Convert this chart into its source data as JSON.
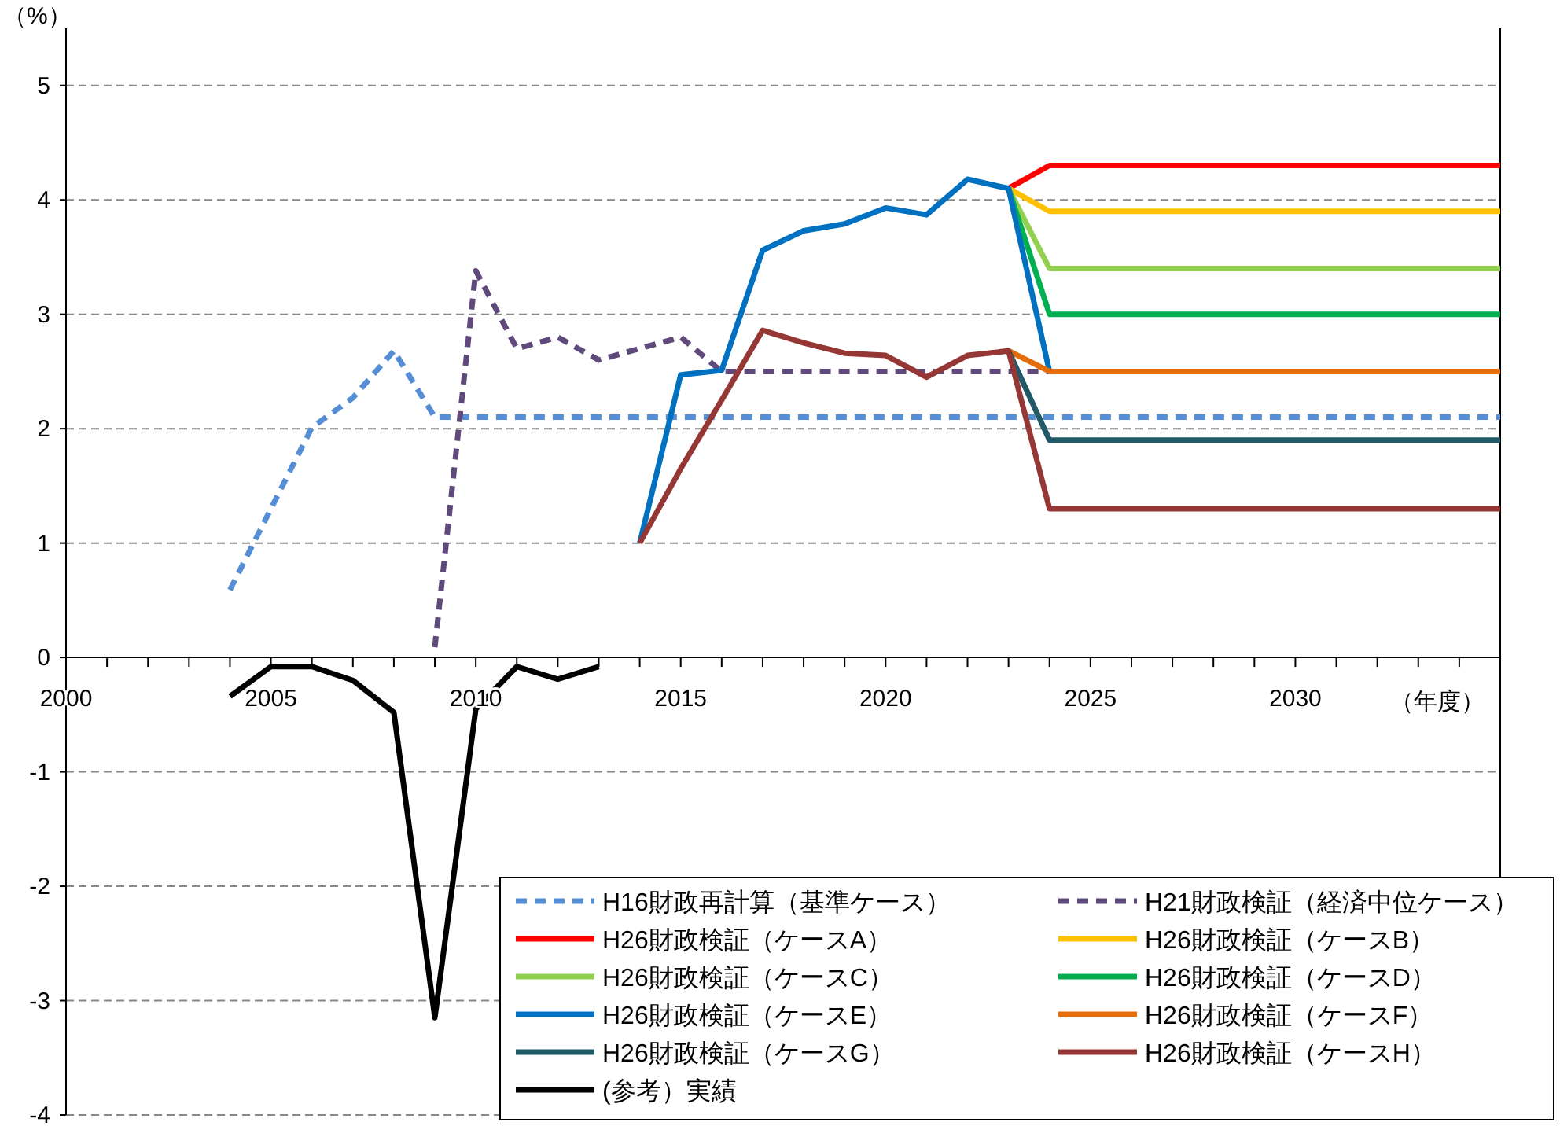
{
  "chart_data": {
    "type": "line",
    "ylabel": "（%）",
    "xlabel": "（年度）",
    "xlim": [
      2000,
      2035
    ],
    "ylim": [
      -4,
      5.5
    ],
    "xticks": [
      2000,
      {
        "value": 2001,
        "label": null
      },
      {
        "value": 2002,
        "label": null
      },
      {
        "value": 2003,
        "label": null
      },
      {
        "value": 2004,
        "label": null
      },
      2005,
      {
        "value": 2006,
        "label": null
      },
      {
        "value": 2007,
        "label": null
      },
      {
        "value": 2008,
        "label": null
      },
      {
        "value": 2009,
        "label": null
      },
      2010,
      {
        "value": 2011,
        "label": null
      },
      {
        "value": 2012,
        "label": null
      },
      {
        "value": 2013,
        "label": null
      },
      {
        "value": 2014,
        "label": null
      },
      2015,
      {
        "value": 2016,
        "label": null
      },
      {
        "value": 2017,
        "label": null
      },
      {
        "value": 2018,
        "label": null
      },
      {
        "value": 2019,
        "label": null
      },
      2020,
      {
        "value": 2021,
        "label": null
      },
      {
        "value": 2022,
        "label": null
      },
      {
        "value": 2023,
        "label": null
      },
      {
        "value": 2024,
        "label": null
      },
      2025,
      {
        "value": 2026,
        "label": null
      },
      {
        "value": 2027,
        "label": null
      },
      {
        "value": 2028,
        "label": null
      },
      {
        "value": 2029,
        "label": null
      },
      2030,
      {
        "value": 2031,
        "label": null
      },
      {
        "value": 2032,
        "label": null
      },
      {
        "value": 2033,
        "label": null
      },
      {
        "value": 2034,
        "label": null
      }
    ],
    "yticks": [
      -4,
      -3,
      -2,
      -1,
      0,
      1,
      2,
      3,
      4,
      5
    ],
    "grid": "y",
    "legend": "bottom right",
    "marker": "none",
    "series": [
      {
        "name": "H16財政再計算（基準ケース）",
        "color": "#558ed5",
        "line_style": "dashed",
        "x": [
          2004,
          2006,
          2007,
          2008,
          2009,
          2035
        ],
        "values": [
          0.59,
          2.01,
          2.27,
          2.68,
          2.1,
          2.1
        ]
      },
      {
        "name": "H21財政検証（経済中位ケース）",
        "color": "#604a7b",
        "line_style": "dashed",
        "x": [
          2009,
          2010,
          2011,
          2012,
          2013,
          2014,
          2015,
          2016,
          2024
        ],
        "values": [
          0.09,
          3.38,
          2.7,
          2.8,
          2.6,
          2.7,
          2.8,
          2.5,
          2.5
        ]
      },
      {
        "name": "H26財政検証（ケースA）",
        "color": "#ff0000",
        "line_style": "solid",
        "x": [
          2023,
          2024,
          2035
        ],
        "values": [
          4.1,
          4.3,
          4.3
        ]
      },
      {
        "name": "H26財政検証（ケースB）",
        "color": "#ffc000",
        "line_style": "solid",
        "x": [
          2023,
          2024,
          2035
        ],
        "values": [
          4.1,
          3.9,
          3.9
        ]
      },
      {
        "name": "H26財政検証（ケースC）",
        "color": "#92d050",
        "line_style": "solid",
        "x": [
          2023,
          2024,
          2035
        ],
        "values": [
          4.1,
          3.4,
          3.4
        ]
      },
      {
        "name": "H26財政検証（ケースD）",
        "color": "#00b050",
        "line_style": "solid",
        "x": [
          2023,
          2024,
          2035
        ],
        "values": [
          4.1,
          3.0,
          3.0
        ]
      },
      {
        "name": "H26財政検証（ケースE）",
        "color": "#0070c0",
        "line_style": "solid",
        "x": [
          2014,
          2015,
          2016,
          2017,
          2018,
          2019,
          2020,
          2021,
          2022,
          2023,
          2024
        ],
        "values": [
          1.0,
          2.47,
          2.51,
          3.56,
          3.73,
          3.79,
          3.93,
          3.87,
          4.18,
          4.1,
          2.5
        ]
      },
      {
        "name": "H26財政検証（ケースF）",
        "color": "#e46c0a",
        "line_style": "solid",
        "x": [
          2023,
          2024,
          2035
        ],
        "values": [
          2.68,
          2.5,
          2.5
        ]
      },
      {
        "name": "H26財政検証（ケースG）",
        "color": "#215967",
        "line_style": "solid",
        "x": [
          2023,
          2024,
          2035
        ],
        "values": [
          2.68,
          1.9,
          1.9
        ]
      },
      {
        "name": "H26財政検証（ケースH）",
        "color": "#953735",
        "line_style": "solid",
        "x": [
          2014,
          2015,
          2016,
          2017,
          2018,
          2019,
          2020,
          2021,
          2022,
          2023,
          2024,
          2035
        ],
        "values": [
          1.0,
          1.65,
          2.25,
          2.86,
          2.75,
          2.66,
          2.64,
          2.45,
          2.64,
          2.68,
          1.3,
          1.3
        ]
      },
      {
        "name": "(参考）実績",
        "color": "#000000",
        "line_style": "solid",
        "x": [
          2004,
          2005,
          2006,
          2007,
          2008,
          2009,
          2010,
          2011,
          2012,
          2013
        ],
        "values": [
          -0.34,
          -0.08,
          -0.08,
          -0.2,
          -0.48,
          -3.15,
          -0.45,
          -0.08,
          -0.19,
          -0.08
        ]
      }
    ]
  }
}
